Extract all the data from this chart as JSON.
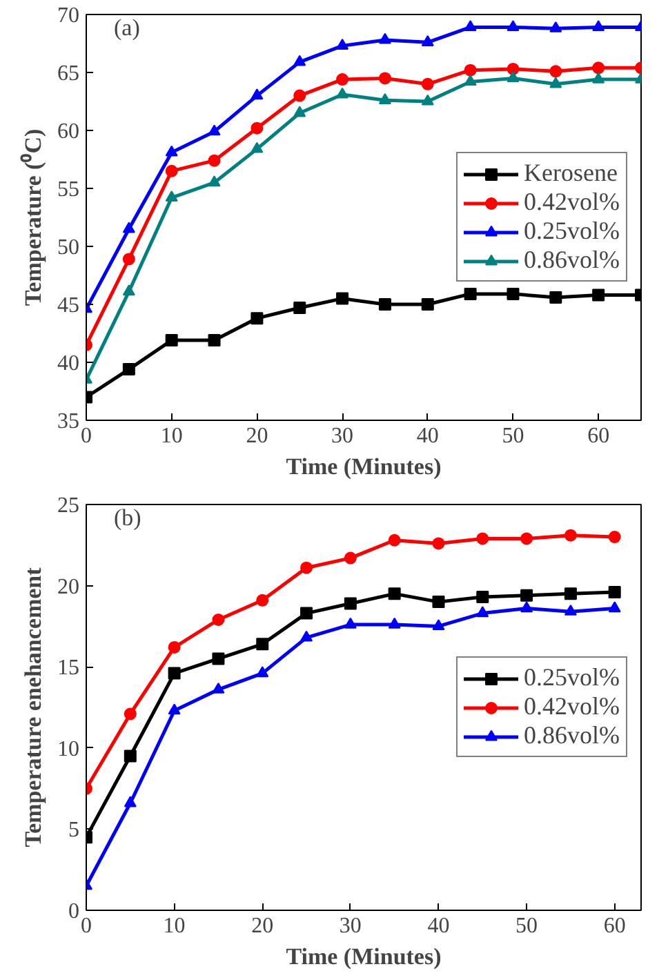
{
  "chart_data": [
    {
      "type": "line",
      "annotations": [
        "(a)"
      ],
      "xlabel": "Time (Minutes)",
      "ylabel": "Temperature (⁰C)",
      "x": [
        0,
        5,
        10,
        15,
        20,
        25,
        30,
        35,
        40,
        45,
        50,
        55,
        60,
        65
      ],
      "xlim": [
        0,
        65
      ],
      "xticks": [
        0,
        10,
        20,
        30,
        40,
        50,
        60
      ],
      "ylim": [
        35,
        70
      ],
      "yticks": [
        35,
        40,
        45,
        50,
        55,
        60,
        65,
        70
      ],
      "legend": "right",
      "grid": false,
      "series": [
        {
          "name": "Kerosene",
          "color": "#000000",
          "marker": "square",
          "values": [
            37,
            39.4,
            41.9,
            41.9,
            43.8,
            44.7,
            45.5,
            45.0,
            45.0,
            45.9,
            45.9,
            45.6,
            45.8,
            45.8
          ]
        },
        {
          "name": "0.42vol%",
          "color": "#ff0000",
          "marker": "circle",
          "values": [
            41.5,
            48.9,
            56.5,
            57.4,
            60.2,
            63.0,
            64.4,
            64.5,
            64.0,
            65.2,
            65.3,
            65.1,
            65.4,
            65.4
          ]
        },
        {
          "name": "0.25vol%",
          "color": "#0000ff",
          "marker": "triangle",
          "values": [
            44.6,
            51.5,
            58.1,
            59.9,
            63.0,
            65.9,
            67.3,
            67.8,
            67.6,
            68.9,
            68.9,
            68.8,
            68.9,
            68.9
          ]
        },
        {
          "name": "0.86vol%",
          "color": "#008080",
          "marker": "triangle",
          "values": [
            38.5,
            46.1,
            54.2,
            55.5,
            58.4,
            61.5,
            63.1,
            62.6,
            62.5,
            64.2,
            64.5,
            64.0,
            64.4,
            64.4
          ]
        }
      ]
    },
    {
      "type": "line",
      "annotations": [
        "(b)"
      ],
      "xlabel": "Time (Minutes)",
      "ylabel": "Temperature enehancement",
      "x": [
        0,
        5,
        10,
        15,
        20,
        25,
        30,
        35,
        40,
        45,
        50,
        55,
        60
      ],
      "xlim": [
        0,
        63
      ],
      "xticks": [
        0,
        10,
        20,
        30,
        40,
        50,
        60
      ],
      "ylim": [
        0,
        25
      ],
      "yticks": [
        0,
        5,
        10,
        15,
        20,
        25
      ],
      "legend": "right",
      "grid": false,
      "series": [
        {
          "name": "0.25vol%",
          "color": "#000000",
          "marker": "square",
          "values": [
            4.5,
            9.5,
            14.6,
            15.5,
            16.4,
            18.3,
            18.9,
            19.5,
            19.0,
            19.3,
            19.4,
            19.5,
            19.6
          ]
        },
        {
          "name": "0.42vol%",
          "color": "#ff0000",
          "marker": "circle",
          "values": [
            7.5,
            12.1,
            16.2,
            17.9,
            19.1,
            21.1,
            21.7,
            22.8,
            22.6,
            22.9,
            22.9,
            23.1,
            23.0
          ]
        },
        {
          "name": "0.86vol%",
          "color": "#0000ff",
          "marker": "triangle",
          "values": [
            1.5,
            6.6,
            12.3,
            13.6,
            14.6,
            16.8,
            17.6,
            17.6,
            17.5,
            18.3,
            18.6,
            18.4,
            18.6
          ]
        }
      ]
    }
  ]
}
